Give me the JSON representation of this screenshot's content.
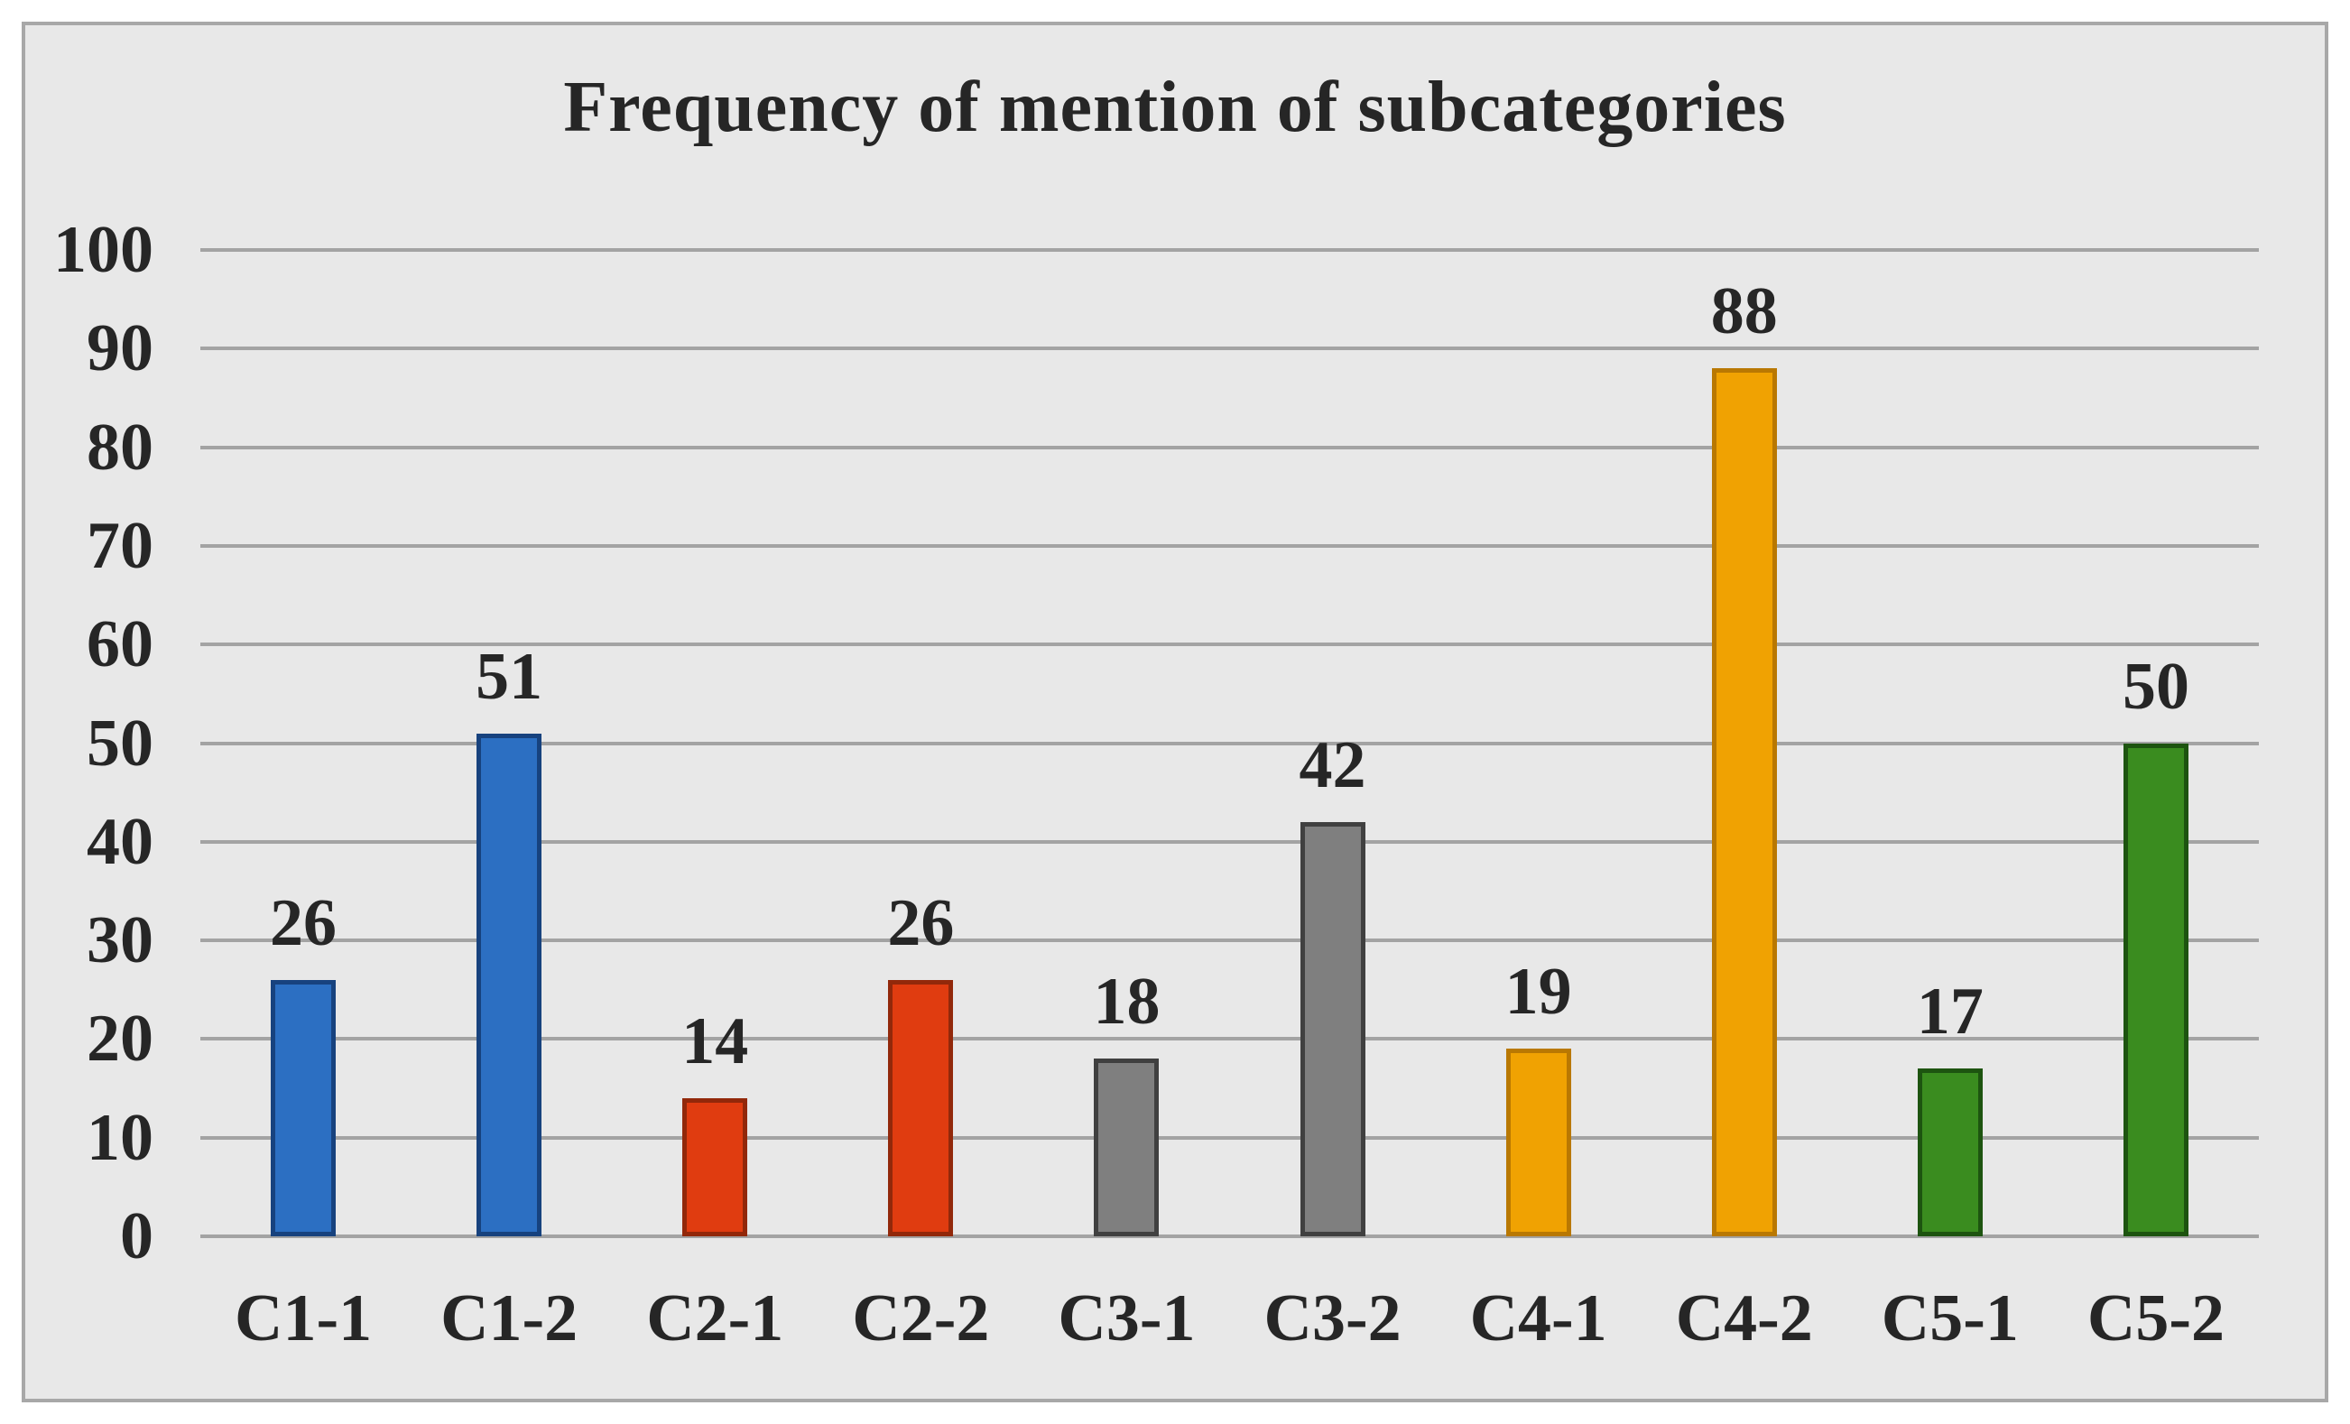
{
  "colors": {
    "page_background": "#ffffff",
    "panel_background": "#e8e8e8",
    "panel_border": "#a8a8a8",
    "gridline": "#a3a3a3",
    "text": "#262626"
  },
  "chart_data": {
    "type": "bar",
    "title": "Frequency of mention of subcategories",
    "categories": [
      "C1-1",
      "C1-2",
      "C2-1",
      "C2-2",
      "C3-1",
      "C3-2",
      "C4-1",
      "C4-2",
      "C5-1",
      "C5-2"
    ],
    "values": [
      26,
      51,
      14,
      26,
      18,
      42,
      19,
      88,
      17,
      50
    ],
    "data_labels": [
      "26",
      "51",
      "14",
      "26",
      "18",
      "42",
      "19",
      "88",
      "17",
      "50"
    ],
    "xlabel": "",
    "ylabel": "",
    "ylim": [
      0,
      100
    ],
    "y_ticks": [
      0,
      10,
      20,
      30,
      40,
      50,
      60,
      70,
      80,
      90,
      100
    ],
    "grid": true,
    "legend": false,
    "group_fills": [
      "#2c6fc2",
      "#2c6fc2",
      "#e03c10",
      "#e03c10",
      "#7f7f7f",
      "#7f7f7f",
      "#f0a202",
      "#f0a202",
      "#3a8c1f",
      "#3a8c1f"
    ],
    "group_strokes": [
      "#17427e",
      "#17427e",
      "#92280a",
      "#92280a",
      "#404040",
      "#404040",
      "#b97802",
      "#b97802",
      "#1d5410",
      "#1d5410"
    ]
  }
}
